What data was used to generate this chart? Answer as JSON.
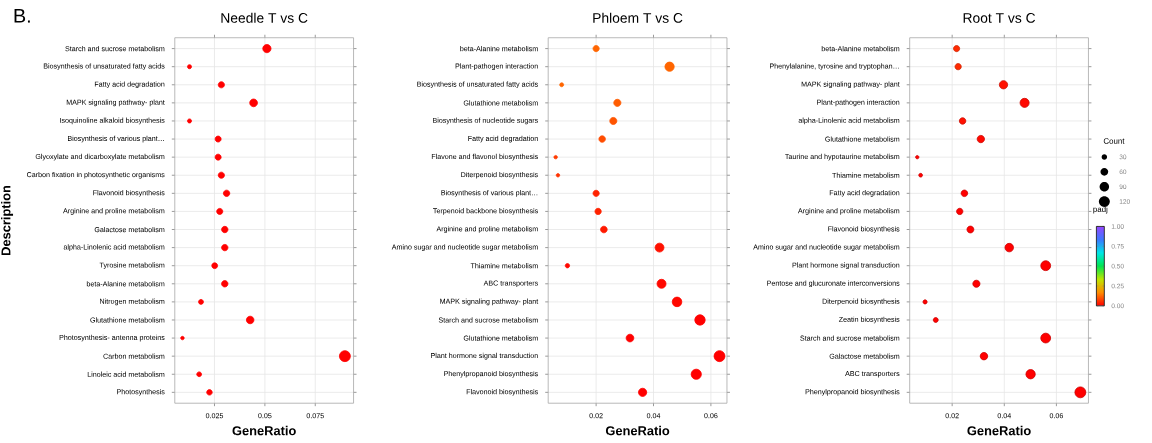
{
  "chart_data": [
    {
      "type": "bubble",
      "title": "Needle T vs C",
      "xlabel": "GeneRatio",
      "ylabel": "Description",
      "annotations": [
        "B."
      ],
      "orientation": "horizontal",
      "grid": true,
      "categories": [
        "Starch and sucrose metabolism",
        "Biosynthesis of unsaturated fatty acids",
        "Fatty acid degradation",
        "MAPK signaling pathway- plant",
        "Isoquinoline alkaloid biosynthesis",
        "Biosynthesis of various plant…",
        "Glyoxylate and dicarboxylate metabolism",
        "Carbon fixation in photosynthetic organisms",
        "Flavonoid biosynthesis",
        "Arginine and proline metabolism",
        "Galactose metabolism",
        "alpha-Linolenic acid metabolism",
        "Tyrosine metabolism",
        "beta-Alanine metabolism",
        "Nitrogen metabolism",
        "Glutathione metabolism",
        "Photosynthesis- antenna proteins",
        "Carbon metabolism",
        "Linoleic acid metabolism",
        "Photosynthesis"
      ],
      "values": [
        0.051,
        0.0126,
        0.0284,
        0.0444,
        0.0126,
        0.0268,
        0.0268,
        0.0284,
        0.031,
        0.0276,
        0.0301,
        0.0301,
        0.0251,
        0.0301,
        0.0183,
        0.0427,
        0.0091,
        0.0897,
        0.0174,
        0.0225
      ],
      "sizes": [
        0.57,
        0.14,
        0.32,
        0.5,
        0.14,
        0.3,
        0.3,
        0.32,
        0.34,
        0.31,
        0.34,
        0.34,
        0.28,
        0.34,
        0.2,
        0.48,
        0.1,
        1,
        0.19,
        0.25
      ],
      "color": "#ff0000",
      "xlim": [
        0.0053,
        0.094
      ],
      "xticks": [
        0.025,
        0.05,
        0.075
      ]
    },
    {
      "type": "bubble",
      "title": "Phloem T vs C",
      "xlabel": "GeneRatio",
      "orientation": "horizontal",
      "grid": true,
      "categories": [
        "beta-Alanine metabolism",
        "Plant-pathogen interaction",
        "Biosynthesis of unsaturated fatty acids",
        "Glutathione metabolism",
        "Biosynthesis of nucleotide sugars",
        "Fatty acid degradation",
        "Flavone and flavonol biosynthesis",
        "Diterpenoid biosynthesis",
        "Biosynthesis of various plant…",
        "Terpenoid backbone biosynthesis",
        "Arginine and proline metabolism",
        "Amino sugar and nucleotide sugar metabolism",
        "Thiamine metabolism",
        "ABC transporters",
        "MAPK signaling pathway- plant",
        "Starch and sucrose metabolism",
        "Glutathione metabolism",
        "Plant hormone signal transduction",
        "Phenylpropanoid biosynthesis",
        "Flavonoid biosynthesis"
      ],
      "values": [
        0.02,
        0.0456,
        0.008,
        0.0274,
        0.026,
        0.0221,
        0.0059,
        0.0067,
        0.02,
        0.0207,
        0.0227,
        0.0421,
        0.01,
        0.0428,
        0.0482,
        0.0562,
        0.0318,
        0.063,
        0.0549,
        0.0362
      ],
      "sizes": [
        0.32,
        0.72,
        0.13,
        0.43,
        0.42,
        0.35,
        0.1,
        0.1,
        0.32,
        0.33,
        0.37,
        0.67,
        0.16,
        0.68,
        0.77,
        0.9,
        0.5,
        1,
        0.87,
        0.57
      ],
      "colors": [
        "#ff6500",
        "#ff6500",
        "#ff6500",
        "#ff5c00",
        "#ff5400",
        "#ff4c00",
        "#ff3b00",
        "#ff3200",
        "#ff2200",
        "#ff2200",
        "#ff1900",
        "#ff1100",
        "#ff0800",
        "#ff0800",
        "#ff0800",
        "#ff0000",
        "#ff0000",
        "#ff0000",
        "#ff0000",
        "#ff0000"
      ],
      "xlim": [
        0.0033,
        0.0656
      ],
      "xticks": [
        0.02,
        0.04,
        0.06
      ]
    },
    {
      "type": "bubble",
      "title": "Root T vs C",
      "xlabel": "GeneRatio",
      "orientation": "horizontal",
      "grid": true,
      "categories": [
        "beta-Alanine metabolism",
        "Phenylalanine, tyrosine and tryptophan…",
        "MAPK signaling pathway- plant",
        "Plant-pathogen interaction",
        "alpha-Linolenic acid metabolism",
        "Glutathione metabolism",
        "Taurine and hypotaurine metabolism",
        "Thiamine metabolism",
        "Fatty acid degradation",
        "Arginine and proline metabolism",
        "Flavonoid biosynthesis",
        "Amino sugar and nucleotide sugar metabolism",
        "Plant hormone signal transduction",
        "Pentose and glucuronate interconversions",
        "Diterpenoid biosynthesis",
        "Zeatin biosynthesis",
        "Starch and sucrose metabolism",
        "Galactose metabolism",
        "ABC transporters",
        "Phenylpropanoid biosynthesis"
      ],
      "values": [
        0.0217,
        0.0223,
        0.0397,
        0.0478,
        0.024,
        0.031,
        0.0066,
        0.0079,
        0.0247,
        0.0229,
        0.027,
        0.0419,
        0.0559,
        0.0293,
        0.0096,
        0.0137,
        0.0559,
        0.0322,
        0.0501,
        0.0692
      ],
      "sizes": [
        38,
        39,
        69,
        83,
        42,
        54,
        11,
        14,
        43,
        40,
        47,
        73,
        97,
        51,
        17,
        24,
        97,
        56,
        87,
        120
      ],
      "cvalues": [
        0.05,
        0.05,
        0.02,
        0.01,
        0.02,
        0.01,
        0,
        0,
        0,
        0,
        0,
        0,
        0,
        0,
        0,
        0,
        0,
        0,
        0,
        0
      ],
      "xlim": [
        0.0037,
        0.0723
      ],
      "xticks": [
        0.02,
        0.04,
        0.06
      ],
      "legend_title": "Count",
      "size_legend": [
        30,
        60,
        90,
        120
      ],
      "clabel": "padj",
      "clim": [
        0,
        1
      ],
      "cticks": [
        {
          "value": 1,
          "label": "1.00"
        },
        {
          "value": 0.75,
          "label": "0.75"
        },
        {
          "value": 0.5,
          "label": "0.50"
        },
        {
          "value": 0.25,
          "label": "0.25"
        },
        {
          "value": 0,
          "label": "0.00"
        }
      ]
    }
  ]
}
